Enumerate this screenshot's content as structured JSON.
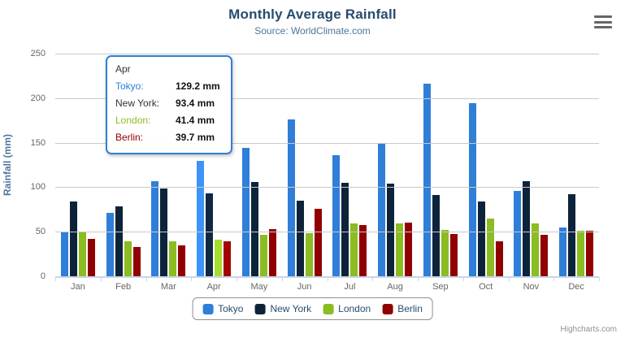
{
  "title": "Monthly Average Rainfall",
  "subtitle": "Source: WorldClimate.com",
  "credits": "Highcharts.com",
  "colors": {
    "title": "#274b6d",
    "subtitle": "#4d759e",
    "axis_label": "#666666",
    "gridline": "#c9c9c9",
    "axis_line": "#c7d6e6",
    "legend_border": "#909090",
    "tooltip_border": "#2f7ed8"
  },
  "chart_data": {
    "type": "bar",
    "title": "Monthly Average Rainfall",
    "subtitle": "Source: WorldClimate.com",
    "xlabel": "",
    "ylabel": "Rainfall (mm)",
    "ylim": [
      0,
      250
    ],
    "yticks": [
      0,
      50,
      100,
      150,
      200,
      250
    ],
    "grid": true,
    "legend_position": "bottom",
    "categories": [
      "Jan",
      "Feb",
      "Mar",
      "Apr",
      "May",
      "Jun",
      "Jul",
      "Aug",
      "Sep",
      "Oct",
      "Nov",
      "Dec"
    ],
    "series": [
      {
        "name": "Tokyo",
        "color": "#2f7ed8",
        "values": [
          49.9,
          71.5,
          106.4,
          129.2,
          144.0,
          176.0,
          135.6,
          148.5,
          216.4,
          194.1,
          95.6,
          54.4
        ]
      },
      {
        "name": "New York",
        "color": "#0d233a",
        "values": [
          83.6,
          78.8,
          98.5,
          93.4,
          106.0,
          84.5,
          105.0,
          104.3,
          91.2,
          83.5,
          106.6,
          92.3
        ]
      },
      {
        "name": "London",
        "color": "#8bbc21",
        "values": [
          48.9,
          38.8,
          39.3,
          41.4,
          47.0,
          48.3,
          59.0,
          59.6,
          52.4,
          65.2,
          59.3,
          51.2
        ]
      },
      {
        "name": "Berlin",
        "color": "#910000",
        "values": [
          42.4,
          33.2,
          34.5,
          39.7,
          52.6,
          75.5,
          57.4,
          60.4,
          47.6,
          39.1,
          46.8,
          51.1
        ]
      }
    ]
  },
  "tooltip": {
    "category": "Apr",
    "hover_category_index": 3,
    "rows": [
      {
        "name": "Tokyo:",
        "value": "129.2 mm",
        "color": "#2f7ed8"
      },
      {
        "name": "New York:",
        "value": "93.4 mm",
        "color": "#333333"
      },
      {
        "name": "London:",
        "value": "41.4 mm",
        "color": "#8bbc21"
      },
      {
        "name": "Berlin:",
        "value": "39.7 mm",
        "color": "#910000"
      }
    ]
  },
  "legend": {
    "items": [
      {
        "label": "Tokyo",
        "color": "#2f7ed8"
      },
      {
        "label": "New York",
        "color": "#0d233a"
      },
      {
        "label": "London",
        "color": "#8bbc21"
      },
      {
        "label": "Berlin",
        "color": "#910000"
      }
    ]
  }
}
